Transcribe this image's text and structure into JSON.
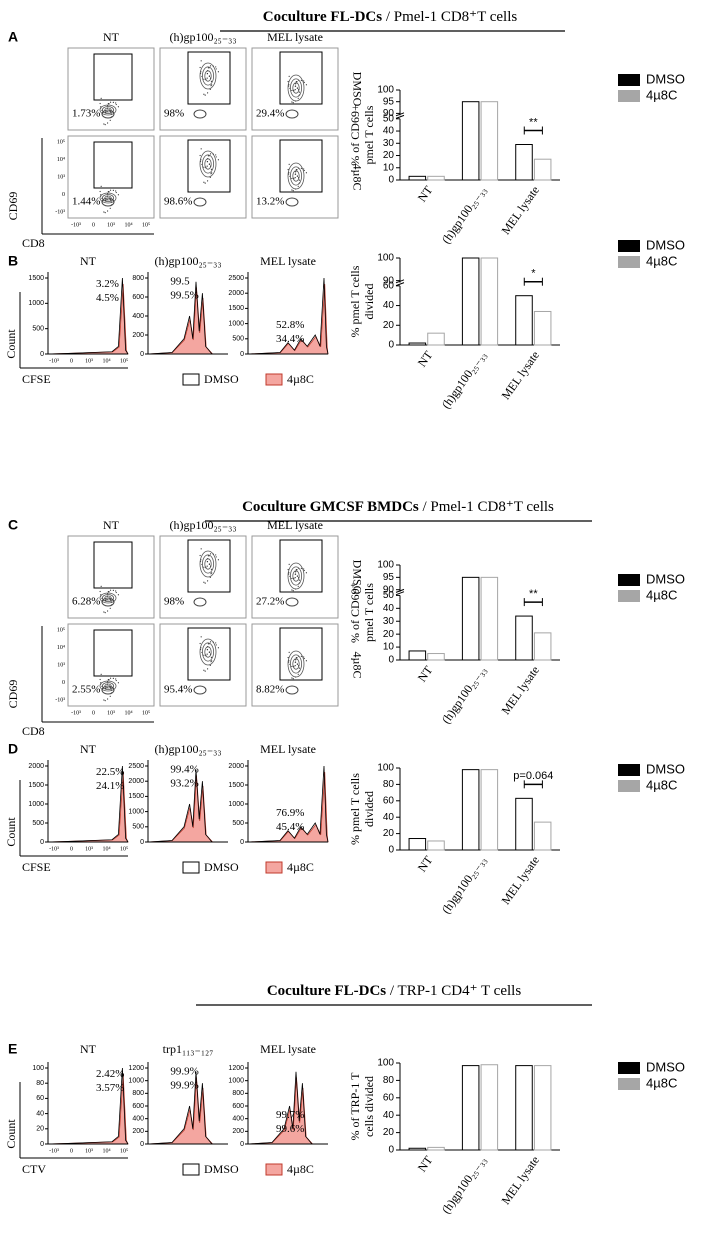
{
  "headings": [
    {
      "bold": "Coculture  FL-DCs",
      "rest": " / Pmel-1 CD8⁺T cells"
    },
    {
      "bold": "Coculture  GMCSF BMDCs",
      "rest": " / Pmel-1 CD8⁺T cells"
    },
    {
      "bold": "Coculture  FL-DCs",
      "rest": " / TRP-1 CD4⁺ T cells"
    }
  ],
  "panel_letters": [
    "A",
    "B",
    "C",
    "D",
    "E"
  ],
  "flow": [
    {
      "columns": [
        "NT",
        "(h)gp100₂₅₋₃₃",
        "MEL lysate"
      ],
      "rows": [
        "DMSO",
        "4µ8C"
      ],
      "percents": [
        [
          "1.73%",
          "98%",
          "29.4%"
        ],
        [
          "1.44%",
          "98.6%",
          "13.2%"
        ]
      ],
      "y_label": "CD69",
      "x_label": "CD8",
      "x_ticks": [
        "-10³",
        "0",
        "10³",
        "10⁴",
        "10⁵"
      ],
      "y_ticks": [
        "10⁵",
        "10⁴",
        "10³",
        "0",
        "-10³"
      ]
    },
    {
      "columns": [
        "NT",
        "(h)gp100₂₅₋₃₃",
        "MEL lysate"
      ],
      "rows": [
        "DMSO",
        "4µ8C"
      ],
      "percents": [
        [
          "6.28%",
          "98%",
          "27.2%"
        ],
        [
          "2.55%",
          "95.4%",
          "8.82%"
        ]
      ],
      "y_label": "CD69",
      "x_label": "CD8",
      "x_ticks": [
        "-10³",
        "0",
        "10³",
        "10⁴",
        "10⁵"
      ],
      "y_ticks": [
        "10⁵",
        "10⁴",
        "10³",
        "0",
        "-10³"
      ]
    }
  ],
  "hist": [
    {
      "columns": [
        "NT",
        "(h)gp100₂₅₋₃₃",
        "MEL lysate"
      ],
      "percents": [
        [
          "3.2%",
          "4.5%"
        ],
        [
          "99.5",
          "99.5%"
        ],
        [
          "52.8%",
          "34.4%"
        ]
      ],
      "y_ticks": [
        [
          0,
          500,
          1000,
          1500
        ],
        [
          0,
          200,
          400,
          600,
          800
        ],
        [
          0,
          500,
          1000,
          1500,
          2000,
          2500
        ]
      ],
      "x_ticks": [
        "-10³",
        "0",
        "10³",
        "10⁴",
        "10⁵"
      ],
      "y_label": "Count",
      "x_label": "CFSE",
      "legend": [
        "DMSO",
        "4µ8C"
      ]
    },
    {
      "columns": [
        "NT",
        "(h)gp100₂₅₋₃₃",
        "MEL lysate"
      ],
      "percents": [
        [
          "22.5%",
          "24.1%"
        ],
        [
          "99.4%",
          "93.2%"
        ],
        [
          "76.9%",
          "45.4%"
        ]
      ],
      "y_ticks": [
        [
          0,
          500,
          1000,
          1500,
          2000
        ],
        [
          0,
          500,
          1000,
          1500,
          2000,
          2500
        ],
        [
          0,
          500,
          1000,
          1500,
          2000
        ]
      ],
      "x_ticks": [
        "-10³",
        "0",
        "10³",
        "10⁴",
        "10⁵"
      ],
      "y_label": "Count",
      "x_label": "CFSE",
      "legend": [
        "DMSO",
        "4µ8C"
      ]
    },
    {
      "columns": [
        "NT",
        "trp1₁₁₃₋₁₂₇",
        "MEL lysate"
      ],
      "percents": [
        [
          "2.42%",
          "3.57%"
        ],
        [
          "99.9%",
          "99.9%"
        ],
        [
          "99.7%",
          "99.6%"
        ]
      ],
      "y_ticks": [
        [
          0,
          20,
          40,
          60,
          80,
          100
        ],
        [
          0,
          200,
          400,
          600,
          800,
          1000,
          1200
        ],
        [
          0,
          200,
          400,
          600,
          800,
          1000,
          1200
        ]
      ],
      "x_ticks": [
        "-10³",
        "0",
        "10³",
        "10⁴",
        "10⁵"
      ],
      "y_label": "Count",
      "x_label": "CTV",
      "legend": [
        "DMSO",
        "4µ8C"
      ]
    }
  ],
  "chart_data": [
    {
      "type": "bar",
      "y_label": [
        "% of CD69+",
        "pmel T cells"
      ],
      "categories": [
        "NT",
        "(h)gp100₂₅₋₃₃",
        "MEL lysate"
      ],
      "series": [
        {
          "name": "DMSO",
          "color": "#000000",
          "values": [
            3,
            95,
            29
          ]
        },
        {
          "name": "4µ8C",
          "color": "#a6a6a6",
          "values": [
            3,
            95,
            17
          ]
        }
      ],
      "ylim": [
        0,
        100
      ],
      "ybreak": [
        50,
        90
      ],
      "yticks": [
        0,
        10,
        20,
        30,
        40,
        50,
        90,
        95,
        100
      ],
      "significance": "**"
    },
    {
      "type": "bar",
      "y_label": [
        "% pmel T cells",
        "divided"
      ],
      "categories": [
        "NT",
        "(h)gp100₂₅₋₃₃",
        "MEL lysate"
      ],
      "series": [
        {
          "name": "DMSO",
          "color": "#000000",
          "values": [
            2,
            100,
            50
          ]
        },
        {
          "name": "4µ8C",
          "color": "#a6a6a6",
          "values": [
            12,
            100,
            34
          ]
        }
      ],
      "ylim": [
        0,
        100
      ],
      "ybreak": [
        60,
        90
      ],
      "yticks": [
        0,
        20,
        40,
        60,
        90,
        100
      ],
      "significance": "*"
    },
    {
      "type": "bar",
      "y_label": [
        "% of CD69⁺",
        "pmel T cells"
      ],
      "categories": [
        "NT",
        "(h)gp100₂₅₋₃₃",
        "MEL lysate"
      ],
      "series": [
        {
          "name": "DMSO",
          "color": "#000000",
          "values": [
            7,
            95,
            34
          ]
        },
        {
          "name": "4µ8C",
          "color": "#a6a6a6",
          "values": [
            5,
            95,
            21
          ]
        }
      ],
      "ylim": [
        0,
        100
      ],
      "ybreak": [
        50,
        90
      ],
      "yticks": [
        0,
        10,
        20,
        30,
        40,
        50,
        90,
        95,
        100
      ],
      "significance": "**"
    },
    {
      "type": "bar",
      "y_label": [
        "% pmel T cells",
        "divided"
      ],
      "categories": [
        "NT",
        "(h)gp100₂₅₋₃₃",
        "MEL lysate"
      ],
      "series": [
        {
          "name": "DMSO",
          "color": "#000000",
          "values": [
            14,
            98,
            63
          ]
        },
        {
          "name": "4µ8C",
          "color": "#a6a6a6",
          "values": [
            11,
            98,
            34
          ]
        }
      ],
      "ylim": [
        0,
        100
      ],
      "yticks": [
        0,
        20,
        40,
        60,
        80,
        100
      ],
      "significance": "p=0.064"
    },
    {
      "type": "bar",
      "y_label": [
        "% of TRP-1 T",
        "cells divided"
      ],
      "categories": [
        "NT",
        "(h)gp100₂₅₋₃₃",
        "MEL lysate"
      ],
      "series": [
        {
          "name": "DMSO",
          "color": "#000000",
          "values": [
            2,
            97,
            97
          ]
        },
        {
          "name": "4µ8C",
          "color": "#a6a6a6",
          "values": [
            3,
            98,
            97
          ]
        }
      ],
      "ylim": [
        0,
        100
      ],
      "yticks": [
        0,
        20,
        40,
        60,
        80,
        100
      ]
    }
  ]
}
